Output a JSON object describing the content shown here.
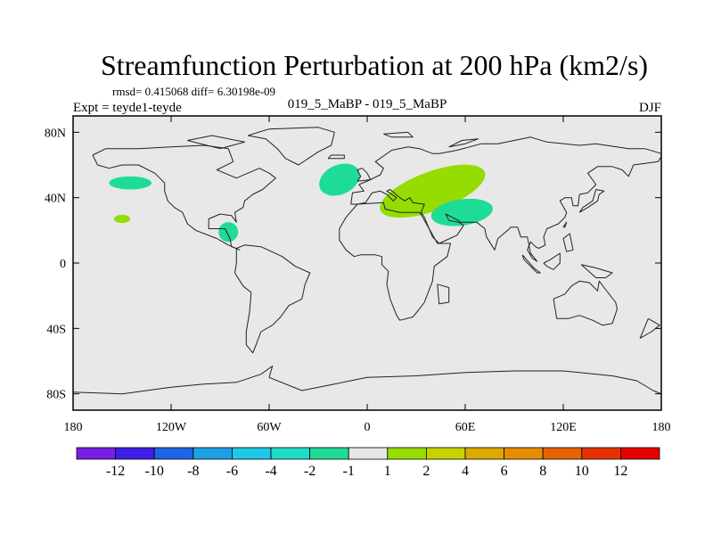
{
  "chart_data": {
    "type": "contour-map",
    "title": "Streamfunction Perturbation at 200 hPa (km2/s)",
    "stats_line": "rmsd= 0.415068 diff= 6.30198e-09",
    "left_label": "Expt = teyde1-teyde",
    "center_label": "019_5_MaBP - 019_5_MaBP",
    "right_label": "DJF",
    "x_ticks": [
      {
        "value": -180,
        "label": "180"
      },
      {
        "value": -120,
        "label": "120W"
      },
      {
        "value": -60,
        "label": "60W"
      },
      {
        "value": 0,
        "label": "0"
      },
      {
        "value": 60,
        "label": "60E"
      },
      {
        "value": 120,
        "label": "120E"
      },
      {
        "value": 180,
        "label": "180"
      }
    ],
    "y_ticks": [
      {
        "value": 80,
        "label": "80N"
      },
      {
        "value": 40,
        "label": "40N"
      },
      {
        "value": 0,
        "label": "0"
      },
      {
        "value": -40,
        "label": "40S"
      },
      {
        "value": -80,
        "label": "80S"
      }
    ],
    "xlim": [
      -180,
      180
    ],
    "ylim": [
      -90,
      90
    ],
    "colorbar": {
      "colors": [
        "#7a1ee6",
        "#3c1ee6",
        "#1e64e6",
        "#1ea0e6",
        "#1ec8e6",
        "#1edcc8",
        "#1edc96",
        "#e6e6e6",
        "#96dc00",
        "#c8d200",
        "#dcaa00",
        "#e68c00",
        "#e66400",
        "#e63200",
        "#e60000"
      ],
      "labels": [
        "-12",
        "-10",
        "-8",
        "-6",
        "-4",
        "-2",
        "-1",
        "1",
        "2",
        "4",
        "6",
        "8",
        "10",
        "12"
      ]
    },
    "anomalies": [
      {
        "lon": -145,
        "lat": 49,
        "rx": 13,
        "ry": 4,
        "rot": 0,
        "color": "#1edc96"
      },
      {
        "lon": -150,
        "lat": 27,
        "rx": 5,
        "ry": 2.5,
        "rot": 0,
        "color": "#96dc00"
      },
      {
        "lon": -85,
        "lat": 19,
        "rx": 6,
        "ry": 6,
        "rot": 0,
        "color": "#1edc96"
      },
      {
        "lon": -17,
        "lat": 51,
        "rx": 13,
        "ry": 9,
        "rot": -25,
        "color": "#1edc96"
      },
      {
        "lon": 40,
        "lat": 44,
        "rx": 34,
        "ry": 12,
        "rot": -20,
        "color": "#96dc00"
      },
      {
        "lon": 58,
        "lat": 31,
        "rx": 19,
        "ry": 8,
        "rot": -8,
        "color": "#1edc96"
      }
    ],
    "coastlines": [
      [
        [
          -168,
          66
        ],
        [
          -160,
          70
        ],
        [
          -140,
          70
        ],
        [
          -120,
          71
        ],
        [
          -100,
          72
        ],
        [
          -85,
          70
        ],
        [
          -82,
          62
        ],
        [
          -92,
          57
        ],
        [
          -80,
          52
        ],
        [
          -66,
          58
        ],
        [
          -60,
          55
        ],
        [
          -56,
          52
        ],
        [
          -64,
          45
        ],
        [
          -70,
          42
        ],
        [
          -75,
          38
        ],
        [
          -76,
          34
        ],
        [
          -81,
          31
        ],
        [
          -80,
          25
        ],
        [
          -83,
          29
        ],
        [
          -90,
          30
        ],
        [
          -97,
          27
        ],
        [
          -97,
          21
        ],
        [
          -90,
          21
        ],
        [
          -87,
          21
        ],
        [
          -84,
          15
        ],
        [
          -83,
          10
        ],
        [
          -78,
          8
        ],
        [
          -85,
          11
        ],
        [
          -92,
          15
        ],
        [
          -105,
          20
        ],
        [
          -110,
          24
        ],
        [
          -113,
          31
        ],
        [
          -118,
          34
        ],
        [
          -122,
          38
        ],
        [
          -124,
          44
        ],
        [
          -124,
          49
        ],
        [
          -130,
          55
        ],
        [
          -140,
          60
        ],
        [
          -150,
          60
        ],
        [
          -158,
          58
        ],
        [
          -165,
          60
        ],
        [
          -168,
          66
        ]
      ],
      [
        [
          -80,
          9
        ],
        [
          -75,
          11
        ],
        [
          -65,
          10
        ],
        [
          -52,
          4
        ],
        [
          -44,
          -2
        ],
        [
          -35,
          -6
        ],
        [
          -38,
          -13
        ],
        [
          -40,
          -22
        ],
        [
          -48,
          -26
        ],
        [
          -53,
          -33
        ],
        [
          -58,
          -38
        ],
        [
          -65,
          -42
        ],
        [
          -68,
          -50
        ],
        [
          -70,
          -55
        ],
        [
          -74,
          -50
        ],
        [
          -74,
          -42
        ],
        [
          -72,
          -30
        ],
        [
          -71,
          -18
        ],
        [
          -76,
          -14
        ],
        [
          -81,
          -6
        ],
        [
          -80,
          0
        ],
        [
          -80,
          9
        ]
      ],
      [
        [
          -73,
          78
        ],
        [
          -60,
          82
        ],
        [
          -30,
          83
        ],
        [
          -20,
          80
        ],
        [
          -22,
          72
        ],
        [
          -30,
          68
        ],
        [
          -42,
          60
        ],
        [
          -50,
          64
        ],
        [
          -55,
          70
        ],
        [
          -62,
          76
        ],
        [
          -73,
          78
        ]
      ],
      [
        [
          -10,
          36
        ],
        [
          -9,
          43
        ],
        [
          -2,
          44
        ],
        [
          -5,
          48
        ],
        [
          2,
          51
        ],
        [
          8,
          54
        ],
        [
          10,
          58
        ],
        [
          5,
          62
        ],
        [
          15,
          69
        ],
        [
          25,
          71
        ],
        [
          32,
          70
        ],
        [
          40,
          67
        ],
        [
          44,
          67
        ],
        [
          55,
          69
        ],
        [
          70,
          73
        ],
        [
          80,
          73
        ],
        [
          100,
          77
        ],
        [
          110,
          74
        ],
        [
          130,
          72
        ],
        [
          140,
          73
        ],
        [
          160,
          70
        ],
        [
          170,
          70
        ],
        [
          180,
          67
        ],
        [
          180,
          65
        ],
        [
          178,
          62
        ],
        [
          163,
          60
        ],
        [
          160,
          53
        ],
        [
          156,
          57
        ],
        [
          150,
          59
        ],
        [
          141,
          59
        ],
        [
          135,
          55
        ],
        [
          140,
          48
        ],
        [
          135,
          43
        ],
        [
          130,
          42
        ],
        [
          129,
          35
        ],
        [
          126,
          35
        ],
        [
          125,
          40
        ],
        [
          121,
          40
        ],
        [
          118,
          38
        ],
        [
          122,
          31
        ],
        [
          121,
          28
        ],
        [
          117,
          24
        ],
        [
          110,
          21
        ],
        [
          108,
          16
        ],
        [
          109,
          11
        ],
        [
          105,
          9
        ],
        [
          103,
          10
        ],
        [
          100,
          13
        ],
        [
          98,
          8
        ],
        [
          101,
          3
        ],
        [
          104,
          1
        ],
        [
          100,
          6
        ],
        [
          98,
          16
        ],
        [
          94,
          16
        ],
        [
          92,
          22
        ],
        [
          88,
          22
        ],
        [
          86,
          20
        ],
        [
          80,
          15
        ],
        [
          78,
          8
        ],
        [
          73,
          16
        ],
        [
          72,
          21
        ],
        [
          67,
          25
        ],
        [
          62,
          25
        ],
        [
          57,
          25
        ],
        [
          56,
          26
        ],
        [
          52,
          28
        ],
        [
          48,
          30
        ],
        [
          50,
          26
        ],
        [
          56,
          25
        ],
        [
          59,
          23
        ],
        [
          55,
          17
        ],
        [
          44,
          12
        ],
        [
          40,
          16
        ],
        [
          35,
          28
        ],
        [
          33,
          31
        ],
        [
          35,
          36
        ],
        [
          28,
          37
        ],
        [
          26,
          40
        ],
        [
          23,
          38
        ],
        [
          20,
          40
        ],
        [
          14,
          45
        ],
        [
          12,
          44
        ],
        [
          18,
          40
        ],
        [
          16,
          38
        ],
        [
          12,
          42
        ],
        [
          8,
          44
        ],
        [
          3,
          43
        ],
        [
          -1,
          37
        ],
        [
          -6,
          36
        ],
        [
          -10,
          36
        ]
      ],
      [
        [
          -17,
          21
        ],
        [
          -13,
          28
        ],
        [
          -6,
          36
        ],
        [
          10,
          37
        ],
        [
          11,
          33
        ],
        [
          20,
          31
        ],
        [
          32,
          31
        ],
        [
          34,
          28
        ],
        [
          43,
          12
        ],
        [
          51,
          12
        ],
        [
          49,
          4
        ],
        [
          41,
          -2
        ],
        [
          40,
          -11
        ],
        [
          35,
          -24
        ],
        [
          32,
          -28
        ],
        [
          28,
          -33
        ],
        [
          20,
          -35
        ],
        [
          18,
          -32
        ],
        [
          14,
          -22
        ],
        [
          12,
          -13
        ],
        [
          13,
          -5
        ],
        [
          9,
          -1
        ],
        [
          9,
          4
        ],
        [
          5,
          5
        ],
        [
          -4,
          5
        ],
        [
          -8,
          4
        ],
        [
          -13,
          8
        ],
        [
          -17,
          14
        ],
        [
          -17,
          21
        ]
      ],
      [
        [
          114,
          -22
        ],
        [
          116,
          -34
        ],
        [
          123,
          -34
        ],
        [
          130,
          -32
        ],
        [
          138,
          -35
        ],
        [
          144,
          -38
        ],
        [
          150,
          -37
        ],
        [
          153,
          -28
        ],
        [
          152,
          -24
        ],
        [
          145,
          -15
        ],
        [
          142,
          -11
        ],
        [
          141,
          -17
        ],
        [
          136,
          -12
        ],
        [
          130,
          -11
        ],
        [
          125,
          -14
        ],
        [
          121,
          -19
        ],
        [
          114,
          -22
        ]
      ],
      [
        [
          -180,
          -79
        ],
        [
          -150,
          -80
        ],
        [
          -120,
          -76
        ],
        [
          -100,
          -74
        ],
        [
          -80,
          -73
        ],
        [
          -65,
          -68
        ],
        [
          -58,
          -63
        ],
        [
          -60,
          -70
        ],
        [
          -40,
          -78
        ],
        [
          -20,
          -74
        ],
        [
          0,
          -70
        ],
        [
          30,
          -69
        ],
        [
          60,
          -67
        ],
        [
          90,
          -66
        ],
        [
          120,
          -66
        ],
        [
          150,
          -69
        ],
        [
          165,
          -72
        ],
        [
          175,
          -78
        ],
        [
          180,
          -80
        ]
      ],
      [
        [
          -6,
          50
        ],
        [
          2,
          51
        ],
        [
          0,
          55
        ],
        [
          -3,
          58
        ],
        [
          -6,
          57
        ],
        [
          -4,
          53
        ],
        [
          -6,
          50
        ]
      ],
      [
        [
          -24,
          64
        ],
        [
          -14,
          64
        ],
        [
          -14,
          66
        ],
        [
          -22,
          66
        ],
        [
          -24,
          64
        ]
      ],
      [
        [
          130,
          31
        ],
        [
          135,
          34
        ],
        [
          141,
          38
        ],
        [
          142,
          42
        ],
        [
          145,
          44
        ],
        [
          140,
          45
        ],
        [
          138,
          38
        ],
        [
          132,
          34
        ],
        [
          130,
          31
        ]
      ],
      [
        [
          95,
          5
        ],
        [
          102,
          -3
        ],
        [
          106,
          -6
        ],
        [
          104,
          -6
        ],
        [
          96,
          2
        ],
        [
          95,
          5
        ]
      ],
      [
        [
          108,
          0
        ],
        [
          112,
          2
        ],
        [
          118,
          6
        ],
        [
          118,
          0
        ],
        [
          114,
          -4
        ],
        [
          110,
          -2
        ],
        [
          108,
          0
        ]
      ],
      [
        [
          131,
          -1
        ],
        [
          140,
          -3
        ],
        [
          150,
          -6
        ],
        [
          146,
          -9
        ],
        [
          140,
          -9
        ],
        [
          131,
          -1
        ]
      ],
      [
        [
          43,
          -13
        ],
        [
          50,
          -15
        ],
        [
          50,
          -24
        ],
        [
          44,
          -25
        ],
        [
          43,
          -13
        ]
      ],
      [
        [
          172,
          -34
        ],
        [
          179,
          -38
        ],
        [
          174,
          -42
        ],
        [
          167,
          -46
        ],
        [
          172,
          -34
        ]
      ],
      [
        [
          -110,
          75
        ],
        [
          -95,
          78
        ],
        [
          -75,
          74
        ],
        [
          -90,
          70
        ],
        [
          -110,
          75
        ]
      ],
      [
        [
          10,
          79
        ],
        [
          25,
          80
        ],
        [
          28,
          77
        ],
        [
          15,
          77
        ],
        [
          10,
          79
        ]
      ],
      [
        [
          50,
          71
        ],
        [
          58,
          75
        ],
        [
          68,
          76
        ],
        [
          60,
          73
        ],
        [
          50,
          71
        ]
      ],
      [
        [
          120,
          22
        ],
        [
          122,
          25
        ],
        [
          121,
          22
        ],
        [
          120,
          22
        ]
      ],
      [
        [
          120,
          15
        ],
        [
          124,
          18
        ],
        [
          126,
          8
        ],
        [
          122,
          7
        ],
        [
          120,
          15
        ]
      ]
    ]
  }
}
